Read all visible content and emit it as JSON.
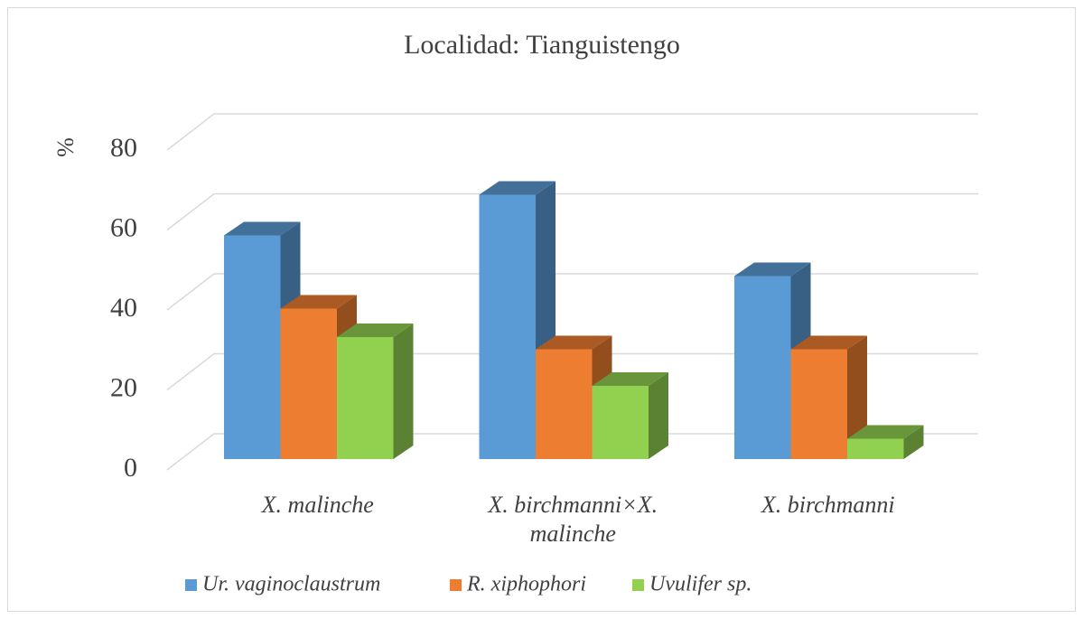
{
  "chart_data": {
    "type": "bar3d",
    "title": "Localidad: Tianguistengo",
    "y_label": "%",
    "categories": [
      "X. malinche",
      "X. birchmanni×X. malinche",
      "X. birchmanni"
    ],
    "series": [
      {
        "name": "Ur. vaginoclaustrum",
        "color": "#5b9bd5",
        "values": [
          55,
          65,
          45
        ]
      },
      {
        "name": "R. xiphophori",
        "color": "#ed7d31",
        "values": [
          37,
          27,
          27
        ]
      },
      {
        "name": "Uvulifer sp.",
        "color": "#92d050",
        "values": [
          30,
          18,
          5
        ]
      }
    ],
    "ylim": [
      0,
      80
    ],
    "yticks": [
      0,
      20,
      40,
      60,
      80
    ],
    "grid": true,
    "legend": "bottom"
  }
}
